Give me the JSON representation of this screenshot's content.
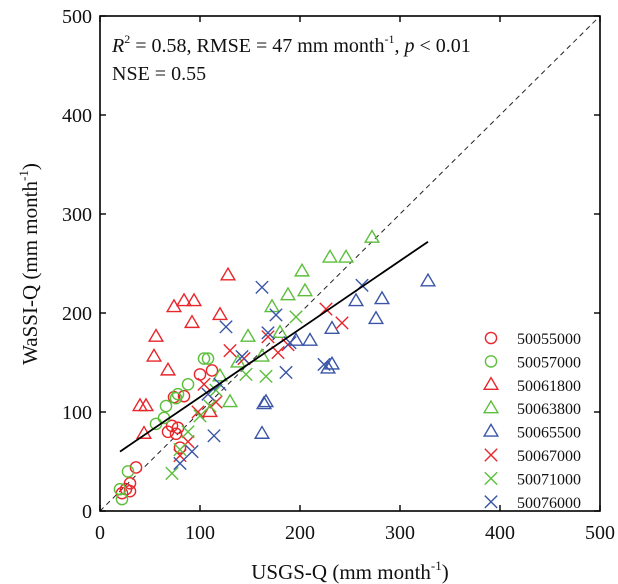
{
  "chart_data": {
    "type": "scatter",
    "xlabel": "USGS-Q (mm month",
    "xlabel_sup": "-1",
    "xlabel_tail": ")",
    "ylabel": "WaSSI-Q (mm month",
    "ylabel_sup": "-1",
    "ylabel_tail": ")",
    "xlim": [
      0,
      500
    ],
    "ylim": [
      0,
      500
    ],
    "xticks": [
      0,
      100,
      200,
      300,
      400,
      500
    ],
    "yticks": [
      0,
      100,
      200,
      300,
      400,
      500
    ],
    "grid": false,
    "legend_position": "right",
    "annotations": {
      "r2_label": "R",
      "r2_sup": "2",
      "r2_value": " = 0.58, RMSE = 47 mm month",
      "rmse_sup": "-1",
      "p_sep": ", ",
      "p_label": "p",
      "p_value": " < 0.01",
      "nse": "NSE = 0.55"
    },
    "one_to_one_line": {
      "x": [
        0,
        500
      ],
      "y": [
        0,
        500
      ]
    },
    "regression_line": {
      "x": [
        20,
        328
      ],
      "y": [
        60,
        272
      ]
    },
    "series": [
      {
        "name": "50055000",
        "marker": "circle",
        "color": "#e8262b",
        "points": [
          [
            22,
            18
          ],
          [
            26,
            22
          ],
          [
            30,
            20
          ],
          [
            30,
            28
          ],
          [
            36,
            44
          ],
          [
            68,
            80
          ],
          [
            72,
            86
          ],
          [
            74,
            115
          ],
          [
            76,
            78
          ],
          [
            78,
            84
          ],
          [
            80,
            64
          ],
          [
            84,
            116
          ],
          [
            100,
            138
          ],
          [
            112,
            142
          ]
        ]
      },
      {
        "name": "50057000",
        "marker": "circle",
        "color": "#5cbf3c",
        "points": [
          [
            20,
            22
          ],
          [
            22,
            12
          ],
          [
            28,
            40
          ],
          [
            56,
            88
          ],
          [
            64,
            94
          ],
          [
            66,
            106
          ],
          [
            76,
            114
          ],
          [
            78,
            118
          ],
          [
            88,
            128
          ],
          [
            104,
            154
          ],
          [
            108,
            154
          ]
        ]
      },
      {
        "name": "50061800",
        "marker": "triangle",
        "color": "#e8262b",
        "points": [
          [
            40,
            106
          ],
          [
            44,
            78
          ],
          [
            46,
            106
          ],
          [
            54,
            156
          ],
          [
            56,
            176
          ],
          [
            68,
            142
          ],
          [
            74,
            206
          ],
          [
            84,
            212
          ],
          [
            92,
            190
          ],
          [
            94,
            212
          ],
          [
            110,
            100
          ],
          [
            120,
            198
          ],
          [
            128,
            238
          ]
        ]
      },
      {
        "name": "50063800",
        "marker": "triangle",
        "color": "#5cbf3c",
        "points": [
          [
            120,
            136
          ],
          [
            130,
            110
          ],
          [
            138,
            150
          ],
          [
            148,
            176
          ],
          [
            162,
            156
          ],
          [
            172,
            206
          ],
          [
            180,
            180
          ],
          [
            188,
            218
          ],
          [
            202,
            242
          ],
          [
            205,
            222
          ],
          [
            230,
            256
          ],
          [
            246,
            256
          ],
          [
            272,
            276
          ]
        ]
      },
      {
        "name": "50065500",
        "marker": "triangle",
        "color": "#3a55a8",
        "points": [
          [
            162,
            78
          ],
          [
            164,
            108
          ],
          [
            166,
            110
          ],
          [
            196,
            172
          ],
          [
            210,
            172
          ],
          [
            228,
            144
          ],
          [
            232,
            148
          ],
          [
            232,
            184
          ],
          [
            256,
            212
          ],
          [
            276,
            194
          ],
          [
            282,
            214
          ],
          [
            328,
            232
          ]
        ]
      },
      {
        "name": "50067000",
        "marker": "x",
        "color": "#e8262b",
        "points": [
          [
            80,
            56
          ],
          [
            88,
            70
          ],
          [
            98,
            100
          ],
          [
            104,
            128
          ],
          [
            116,
            110
          ],
          [
            130,
            162
          ],
          [
            144,
            154
          ],
          [
            168,
            176
          ],
          [
            178,
            160
          ],
          [
            188,
            168
          ],
          [
            226,
            204
          ],
          [
            242,
            190
          ]
        ]
      },
      {
        "name": "50071000",
        "marker": "x",
        "color": "#5cbf3c",
        "points": [
          [
            72,
            38
          ],
          [
            80,
            62
          ],
          [
            88,
            80
          ],
          [
            100,
            96
          ],
          [
            110,
            106
          ],
          [
            116,
            122
          ],
          [
            146,
            138
          ],
          [
            166,
            136
          ],
          [
            196,
            196
          ]
        ]
      },
      {
        "name": "50076000",
        "marker": "x",
        "color": "#3a55a8",
        "points": [
          [
            80,
            48
          ],
          [
            92,
            60
          ],
          [
            108,
            118
          ],
          [
            114,
            76
          ],
          [
            120,
            128
          ],
          [
            126,
            186
          ],
          [
            142,
            156
          ],
          [
            162,
            226
          ],
          [
            168,
            180
          ],
          [
            176,
            198
          ],
          [
            186,
            140
          ],
          [
            190,
            170
          ],
          [
            224,
            148
          ],
          [
            262,
            228
          ]
        ]
      }
    ]
  }
}
